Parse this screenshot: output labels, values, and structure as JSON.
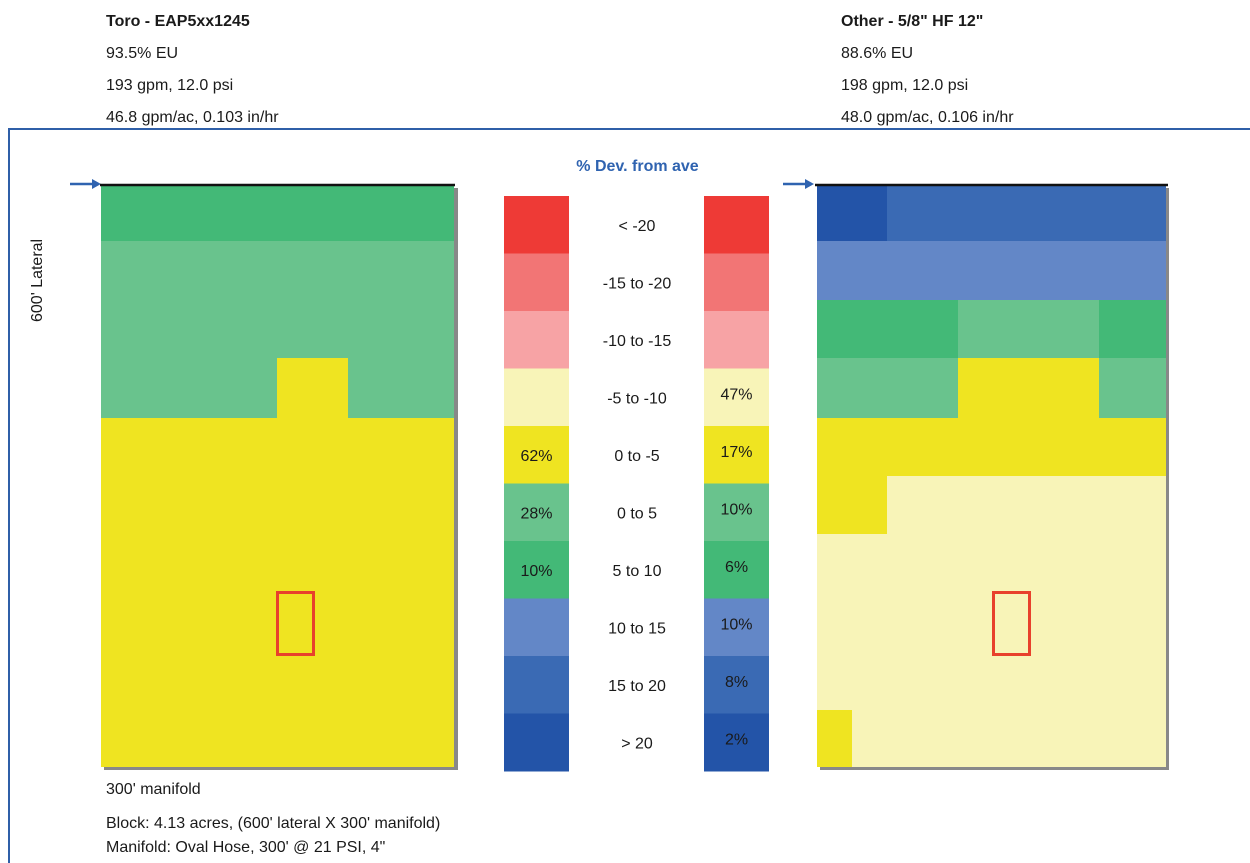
{
  "left_panel": {
    "title": "Toro - EAP5xx1245",
    "eu": "93.5% EU",
    "flow": "193 gpm, 12.0 psi",
    "rate": "46.8 gpm/ac, 0.103 in/hr"
  },
  "right_panel": {
    "title": "Other - 5/8\" HF 12\"",
    "eu": "88.6% EU",
    "flow": "198 gpm, 12.0 psi",
    "rate": "48.0 gpm/ac, 0.106 in/hr"
  },
  "lateral_label": "600' Lateral",
  "manifold_label": "300' manifold",
  "block_info": "Block: 4.13 acres, (600' lateral X 300' manifold)",
  "manifold_info": "Manifold: Oval Hose, 300' @ 21 PSI, 4\"",
  "colors": {
    "frame": "#2f5fa8",
    "marker": "#e8412c"
  },
  "chart_data": {
    "type": "heatmap",
    "title": "% Dev. from ave",
    "legend": [
      {
        "range": "< -20",
        "color": "#ee3a36",
        "left_pct": "",
        "right_pct": ""
      },
      {
        "range": "-15 to -20",
        "color": "#f27575",
        "left_pct": "",
        "right_pct": ""
      },
      {
        "range": "-10 to -15",
        "color": "#f7a3a5",
        "left_pct": "",
        "right_pct": ""
      },
      {
        "range": "-5 to -10",
        "color": "#f8f4b8",
        "left_pct": "",
        "right_pct": "47%"
      },
      {
        "range": "0 to -5",
        "color": "#efe421",
        "left_pct": "62%",
        "right_pct": "17%"
      },
      {
        "range": "0 to 5",
        "color": "#69c38d",
        "left_pct": "28%",
        "right_pct": "10%"
      },
      {
        "range": "5 to 10",
        "color": "#43b977",
        "left_pct": "10%",
        "right_pct": "6%"
      },
      {
        "range": "10 to 15",
        "color": "#6387c7",
        "left_pct": "",
        "right_pct": "10%"
      },
      {
        "range": "15 to 20",
        "color": "#3a6ab4",
        "left_pct": "",
        "right_pct": "8%"
      },
      {
        "range": "> 20",
        "color": "#2354a8",
        "left_pct": "",
        "right_pct": "2%"
      }
    ]
  }
}
